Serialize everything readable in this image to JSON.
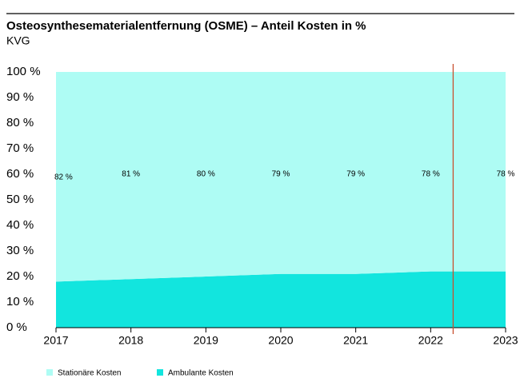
{
  "chart_data": {
    "type": "stacked_area",
    "title": "Osteosynthesematerialentfernung (OSME) – Anteil Kosten in %",
    "subtitle": "KVG",
    "x": [
      2017,
      2018,
      2019,
      2020,
      2021,
      2022,
      2023
    ],
    "xlim": [
      2017,
      2023
    ],
    "xticks": [
      2017,
      2018,
      2019,
      2020,
      2021,
      2022,
      2023
    ],
    "ylim": [
      0,
      100
    ],
    "yticks": [
      {
        "value": 0,
        "label": "0 %"
      },
      {
        "value": 10,
        "label": "10 %"
      },
      {
        "value": 20,
        "label": "20 %"
      },
      {
        "value": 30,
        "label": "30 %"
      },
      {
        "value": 40,
        "label": "40 %"
      },
      {
        "value": 50,
        "label": "50 %"
      },
      {
        "value": 60,
        "label": "60 %"
      },
      {
        "value": 70,
        "label": "70 %"
      },
      {
        "value": 80,
        "label": "80 %"
      },
      {
        "value": 90,
        "label": "90 %"
      },
      {
        "value": 100,
        "label": "100 %"
      }
    ],
    "series": [
      {
        "name": "Ambulante Kosten",
        "color": "#12e5de",
        "values": [
          18,
          19,
          20,
          21,
          21,
          22,
          22
        ]
      },
      {
        "name": "Stationäre Kosten",
        "color": "#aefcf4",
        "values": [
          82,
          81,
          80,
          79,
          79,
          78,
          78
        ],
        "value_labels": [
          "82 %",
          "81 %",
          "80 %",
          "79 %",
          "79 %",
          "78 %",
          "78 %"
        ]
      }
    ],
    "vline": {
      "x": 2022.3,
      "color": "#c8502f"
    }
  }
}
